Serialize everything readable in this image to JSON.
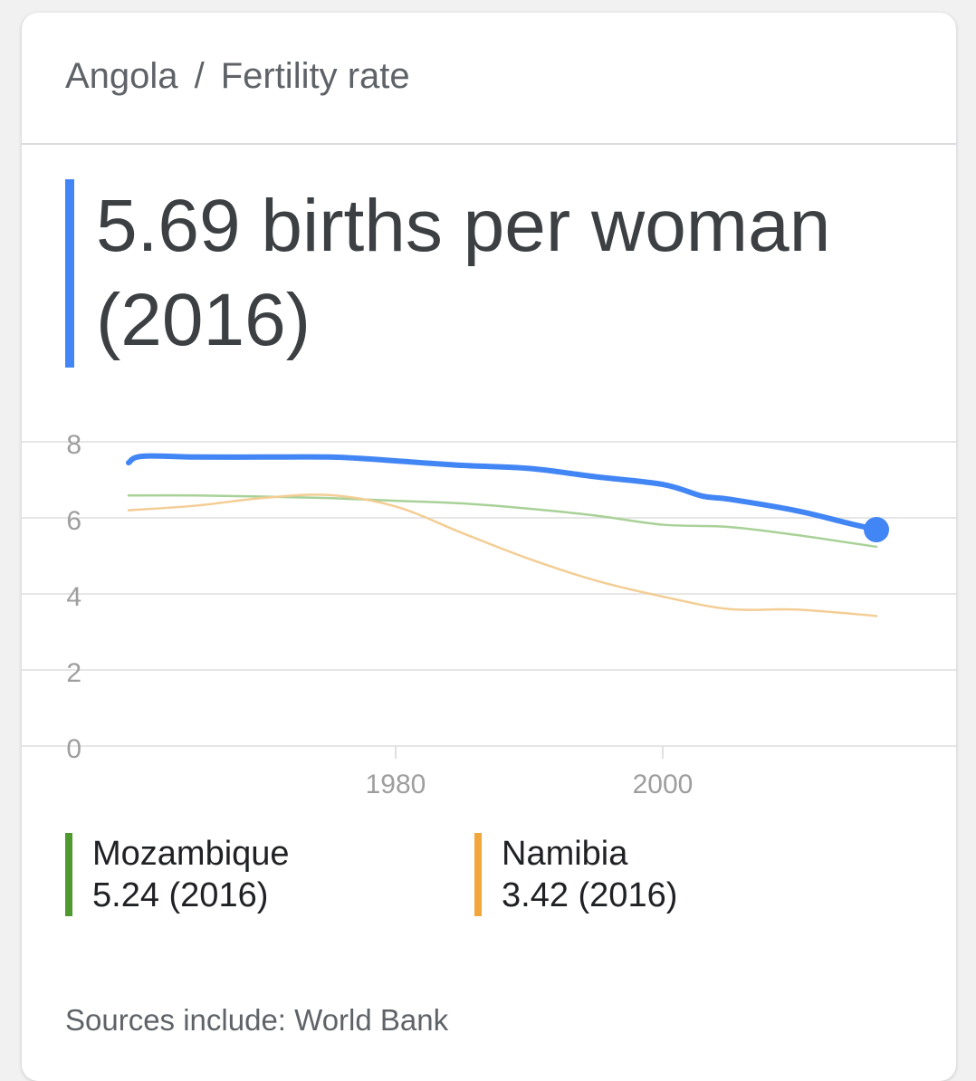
{
  "breadcrumb": {
    "place": "Angola",
    "separator": "/",
    "metric": "Fertility rate"
  },
  "headline": {
    "line1": "5.69 births per woman",
    "line2": "(2016)"
  },
  "colors": {
    "Angola": "#4285f4",
    "Mozambique": "#a8d197",
    "Namibia": "#f3cd94"
  },
  "legend": [
    {
      "name": "Mozambique",
      "value_text": "5.24 (2016)",
      "color": "#4e9a2e"
    },
    {
      "name": "Namibia",
      "value_text": "3.42 (2016)",
      "color": "#f0a63c"
    }
  ],
  "sources": "Sources include: World Bank",
  "chart_data": {
    "type": "line",
    "title": "",
    "xlabel": "",
    "ylabel": "",
    "xlim": [
      1960,
      2016
    ],
    "ylim": [
      0,
      8
    ],
    "yticks": [
      0,
      2,
      4,
      6,
      8
    ],
    "xticks": [
      1980,
      2000
    ],
    "grid": true,
    "series": [
      {
        "name": "Angola",
        "x": [
          1960,
          1961,
          1965,
          1970,
          1975,
          1978,
          1980,
          1985,
          1990,
          1995,
          2000,
          2003,
          2005,
          2010,
          2014,
          2016
        ],
        "y": [
          7.45,
          7.62,
          7.6,
          7.6,
          7.6,
          7.55,
          7.5,
          7.38,
          7.3,
          7.08,
          6.88,
          6.57,
          6.49,
          6.19,
          5.85,
          5.69
        ],
        "highlight_last": true
      },
      {
        "name": "Mozambique",
        "x": [
          1960,
          1965,
          1970,
          1975,
          1980,
          1985,
          1990,
          1995,
          2000,
          2005,
          2010,
          2016
        ],
        "y": [
          6.59,
          6.59,
          6.56,
          6.52,
          6.45,
          6.38,
          6.24,
          6.06,
          5.82,
          5.76,
          5.55,
          5.24
        ]
      },
      {
        "name": "Namibia",
        "x": [
          1960,
          1965,
          1970,
          1975,
          1980,
          1985,
          1990,
          1995,
          2000,
          2005,
          2010,
          2016
        ],
        "y": [
          6.2,
          6.32,
          6.52,
          6.6,
          6.3,
          5.6,
          4.92,
          4.35,
          3.93,
          3.6,
          3.59,
          3.42
        ]
      }
    ]
  }
}
